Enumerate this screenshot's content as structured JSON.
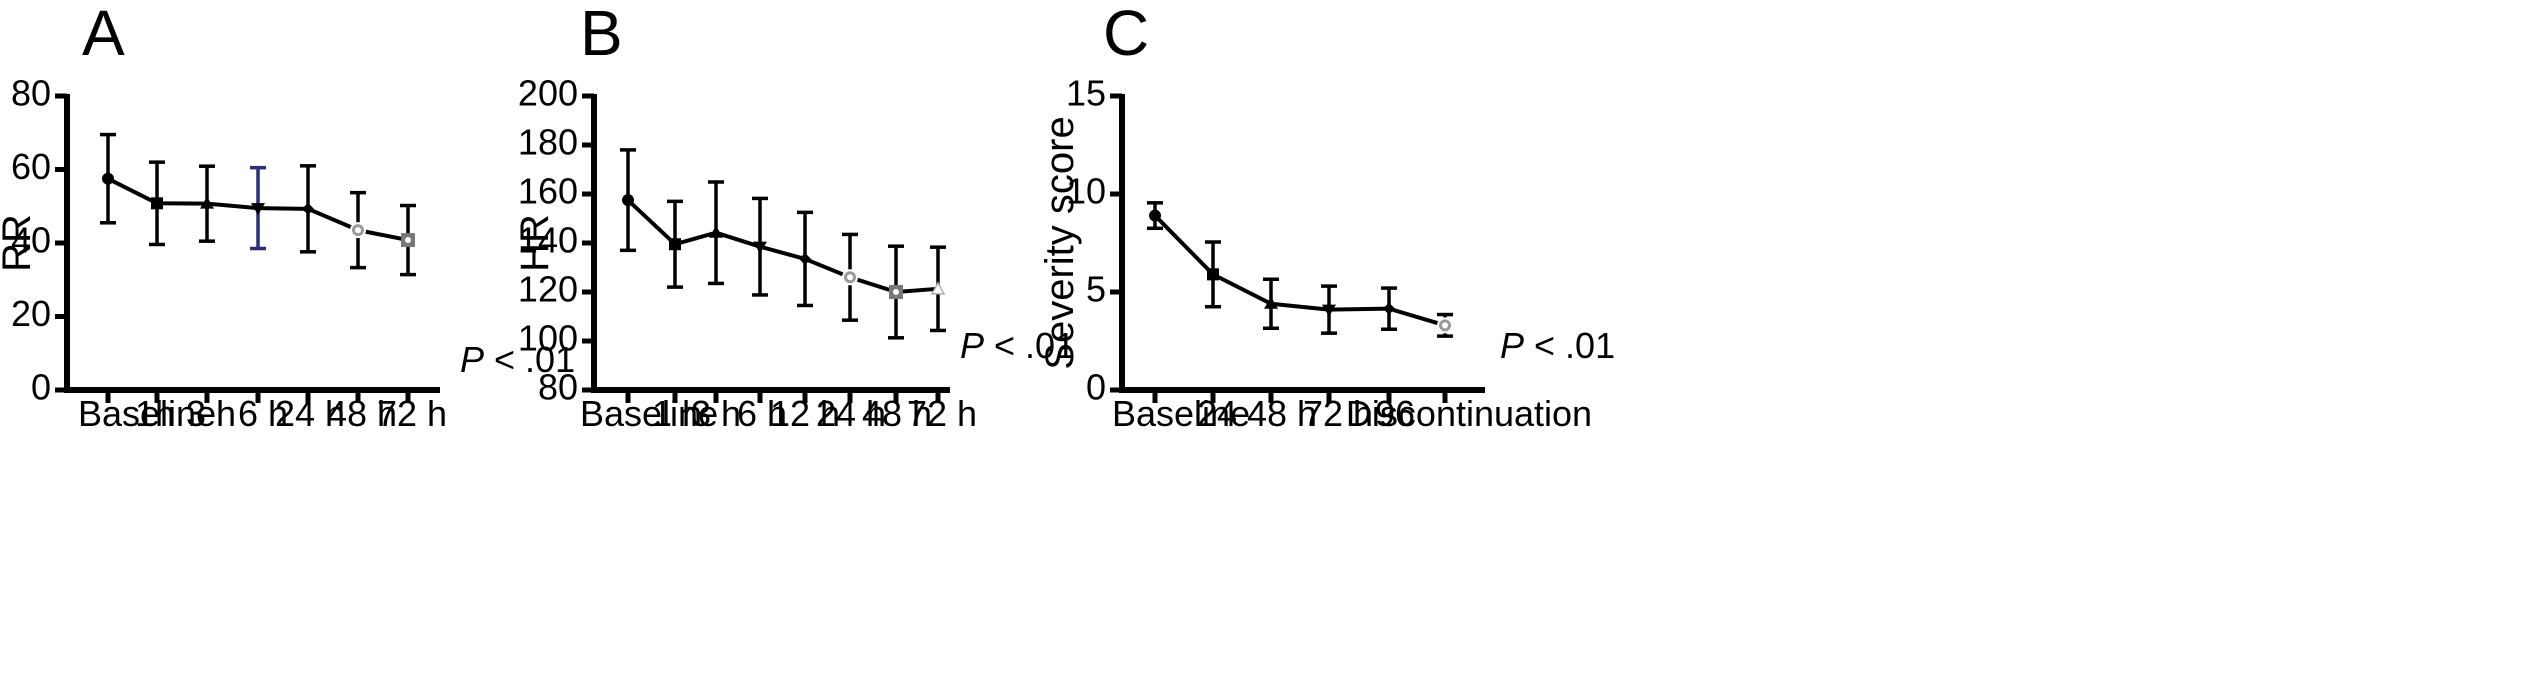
{
  "chart_data": [
    {
      "type": "line",
      "panel_label": "A",
      "ylabel": "RR",
      "ylim": [
        0,
        80
      ],
      "yticks": [
        0,
        20,
        40,
        60,
        80
      ],
      "categories": [
        "Baseline",
        "1h",
        "3 h",
        "6 h",
        "24 h",
        "48 h",
        "72 h"
      ],
      "values": [
        57.5,
        50.8,
        50.7,
        49.5,
        49.3,
        43.5,
        40.8
      ],
      "error": [
        12,
        11.2,
        10.2,
        11,
        11.7,
        10.2,
        9.4
      ],
      "annotation": "P < .01"
    },
    {
      "type": "line",
      "panel_label": "B",
      "ylabel": "HR",
      "ylim": [
        80,
        200
      ],
      "yticks": [
        80,
        100,
        120,
        140,
        160,
        180,
        200
      ],
      "categories": [
        "Baseline",
        "1 h",
        "3 h",
        "6 h",
        "12 h",
        "24 h",
        "48 h",
        "72 h"
      ],
      "values": [
        157.5,
        139.5,
        144.2,
        138.5,
        133.5,
        126,
        120,
        121.3
      ],
      "error": [
        20.5,
        17.5,
        20.7,
        19.7,
        19,
        17.5,
        18.7,
        17
      ],
      "annotation": "P < .01"
    },
    {
      "type": "line",
      "panel_label": "C",
      "ylabel": "Severity score",
      "ylim": [
        0,
        15
      ],
      "yticks": [
        0,
        5,
        10,
        15
      ],
      "categories": [
        "Baseline",
        "24",
        "48 h",
        "72 h",
        "96",
        "Discontinuation"
      ],
      "values": [
        8.9,
        5.9,
        4.4,
        4.1,
        4.15,
        3.3
      ],
      "error": [
        0.65,
        1.65,
        1.25,
        1.2,
        1.05,
        0.55
      ],
      "annotation": "P < .01"
    }
  ]
}
